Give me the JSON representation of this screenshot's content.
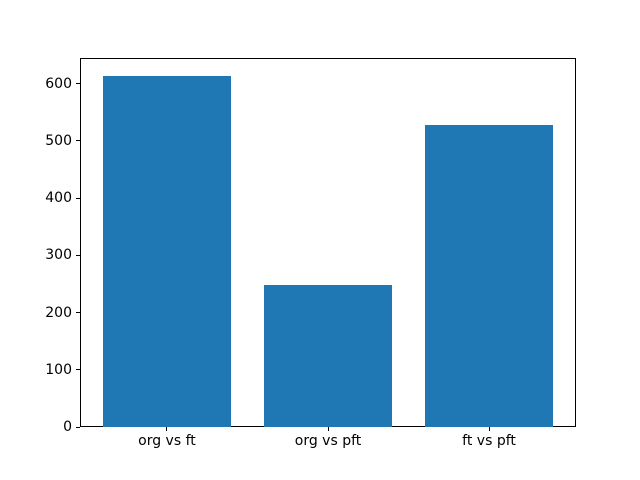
{
  "chart_data": {
    "type": "bar",
    "title": "",
    "xlabel": "",
    "ylabel": "",
    "categories": [
      "org vs ft",
      "org vs pft",
      "ft vs pft"
    ],
    "values": [
      614,
      248,
      528
    ],
    "yticks": [
      0,
      100,
      200,
      300,
      400,
      500,
      600
    ],
    "ylim": [
      0,
      645
    ],
    "bar_color": "#1f77b4",
    "grid": false,
    "legend": null,
    "background_color": "#ffffff",
    "spine_color": "#000000"
  }
}
